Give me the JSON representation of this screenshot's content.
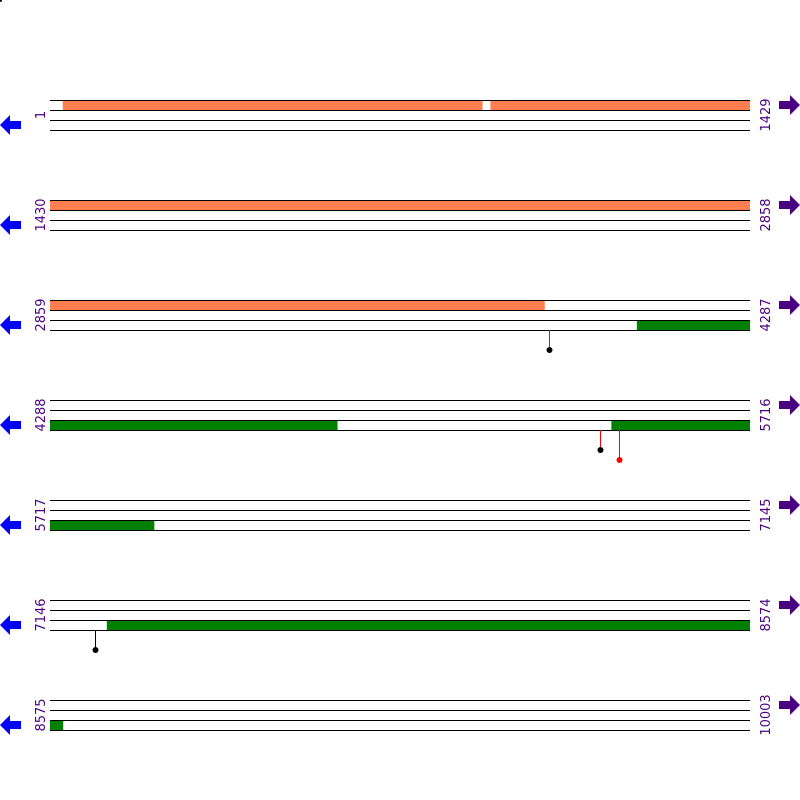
{
  "colors": {
    "forward_feature": "#ff7f50",
    "reverse_feature": "#008000",
    "line": "#000000",
    "left_arrow": "#0000ff",
    "right_arrow": "#4b0082",
    "label": "#4b0082",
    "marker_red": "#ff0000",
    "marker_black": "#000000"
  },
  "icons": {
    "left": "arrow-left-icon",
    "right": "arrow-right-icon"
  },
  "rows": [
    {
      "start": "1",
      "end": "1429",
      "start_pos": 1,
      "end_pos": 1429,
      "features": [
        {
          "strand": "forward",
          "from": 27,
          "to": 883
        },
        {
          "strand": "forward",
          "from": 900,
          "to": 1429
        }
      ],
      "markers": []
    },
    {
      "start": "1430",
      "end": "2858",
      "start_pos": 1430,
      "end_pos": 2858,
      "features": [
        {
          "strand": "forward",
          "from": 1430,
          "to": 2858
        }
      ],
      "markers": []
    },
    {
      "start": "2859",
      "end": "4287",
      "start_pos": 2859,
      "end_pos": 4287,
      "features": [
        {
          "strand": "forward",
          "from": 2859,
          "to": 3868
        },
        {
          "strand": "reverse",
          "from": 4057,
          "to": 4287
        }
      ],
      "markers": [
        {
          "pos": 3878,
          "stem": "red",
          "dot": "black",
          "depth": 1
        }
      ]
    },
    {
      "start": "4288",
      "end": "5716",
      "start_pos": 4288,
      "end_pos": 5716,
      "features": [
        {
          "strand": "reverse",
          "from": 4288,
          "to": 4874
        },
        {
          "strand": "reverse",
          "from": 5434,
          "to": 5716
        }
      ],
      "markers": [
        {
          "pos": 5410,
          "stem": "red",
          "dot": "black",
          "depth": 1
        },
        {
          "pos": 5449,
          "stem": "red",
          "dot": "red",
          "depth": 2
        }
      ]
    },
    {
      "start": "5717",
      "end": "7145",
      "start_pos": 5717,
      "end_pos": 7145,
      "features": [
        {
          "strand": "reverse",
          "from": 5717,
          "to": 5929
        }
      ],
      "markers": []
    },
    {
      "start": "7146",
      "end": "8574",
      "start_pos": 7146,
      "end_pos": 8574,
      "features": [
        {
          "strand": "reverse",
          "from": 7262,
          "to": 8574
        }
      ],
      "markers": [
        {
          "pos": 7238,
          "stem": "black",
          "dot": "black",
          "depth": 1
        }
      ]
    },
    {
      "start": "8575",
      "end": "10003",
      "start_pos": 8575,
      "end_pos": 10003,
      "features": [
        {
          "strand": "reverse",
          "from": 8575,
          "to": 8601
        }
      ],
      "markers": []
    }
  ]
}
